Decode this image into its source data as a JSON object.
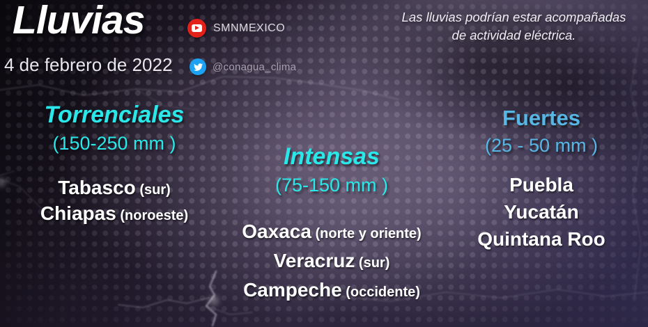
{
  "page": {
    "title": "Lluvias",
    "date": "4 de febrero de 2022",
    "note_line1": "Las lluvias podrían estar acompañadas",
    "note_line2": "de actividad eléctrica."
  },
  "social": {
    "youtube": {
      "icon": "youtube-play-icon",
      "label": "SMNMEXICO"
    },
    "twitter": {
      "icon": "twitter-bird-icon",
      "label": "@conagua_clima"
    }
  },
  "colors": {
    "cyan_accent": "#2ae8e9",
    "blue_accent": "#56b7e4",
    "youtube_red": "#e3211b",
    "twitter_blue": "#1da1f2",
    "text_white": "#ffffff"
  },
  "sections": [
    {
      "id": "torrenciales",
      "title": "Torrenciales",
      "range": "(150-250 mm )",
      "states": [
        {
          "name": "Tabasco",
          "region": "(sur)"
        },
        {
          "name": "Chiapas",
          "region": "(noroeste)"
        }
      ]
    },
    {
      "id": "intensas",
      "title": "Intensas",
      "range": "(75-150 mm )",
      "states": [
        {
          "name": "Oaxaca",
          "region": "(norte y oriente)"
        },
        {
          "name": "Veracruz",
          "region": "(sur)"
        },
        {
          "name": "Campeche",
          "region": "(occidente)"
        }
      ]
    },
    {
      "id": "fuertes",
      "title": "Fuertes",
      "range": "(25 - 50 mm )",
      "states": [
        {
          "name": "Puebla",
          "region": ""
        },
        {
          "name": "Yucatán",
          "region": ""
        },
        {
          "name": "Quintana Roo",
          "region": ""
        }
      ]
    }
  ]
}
